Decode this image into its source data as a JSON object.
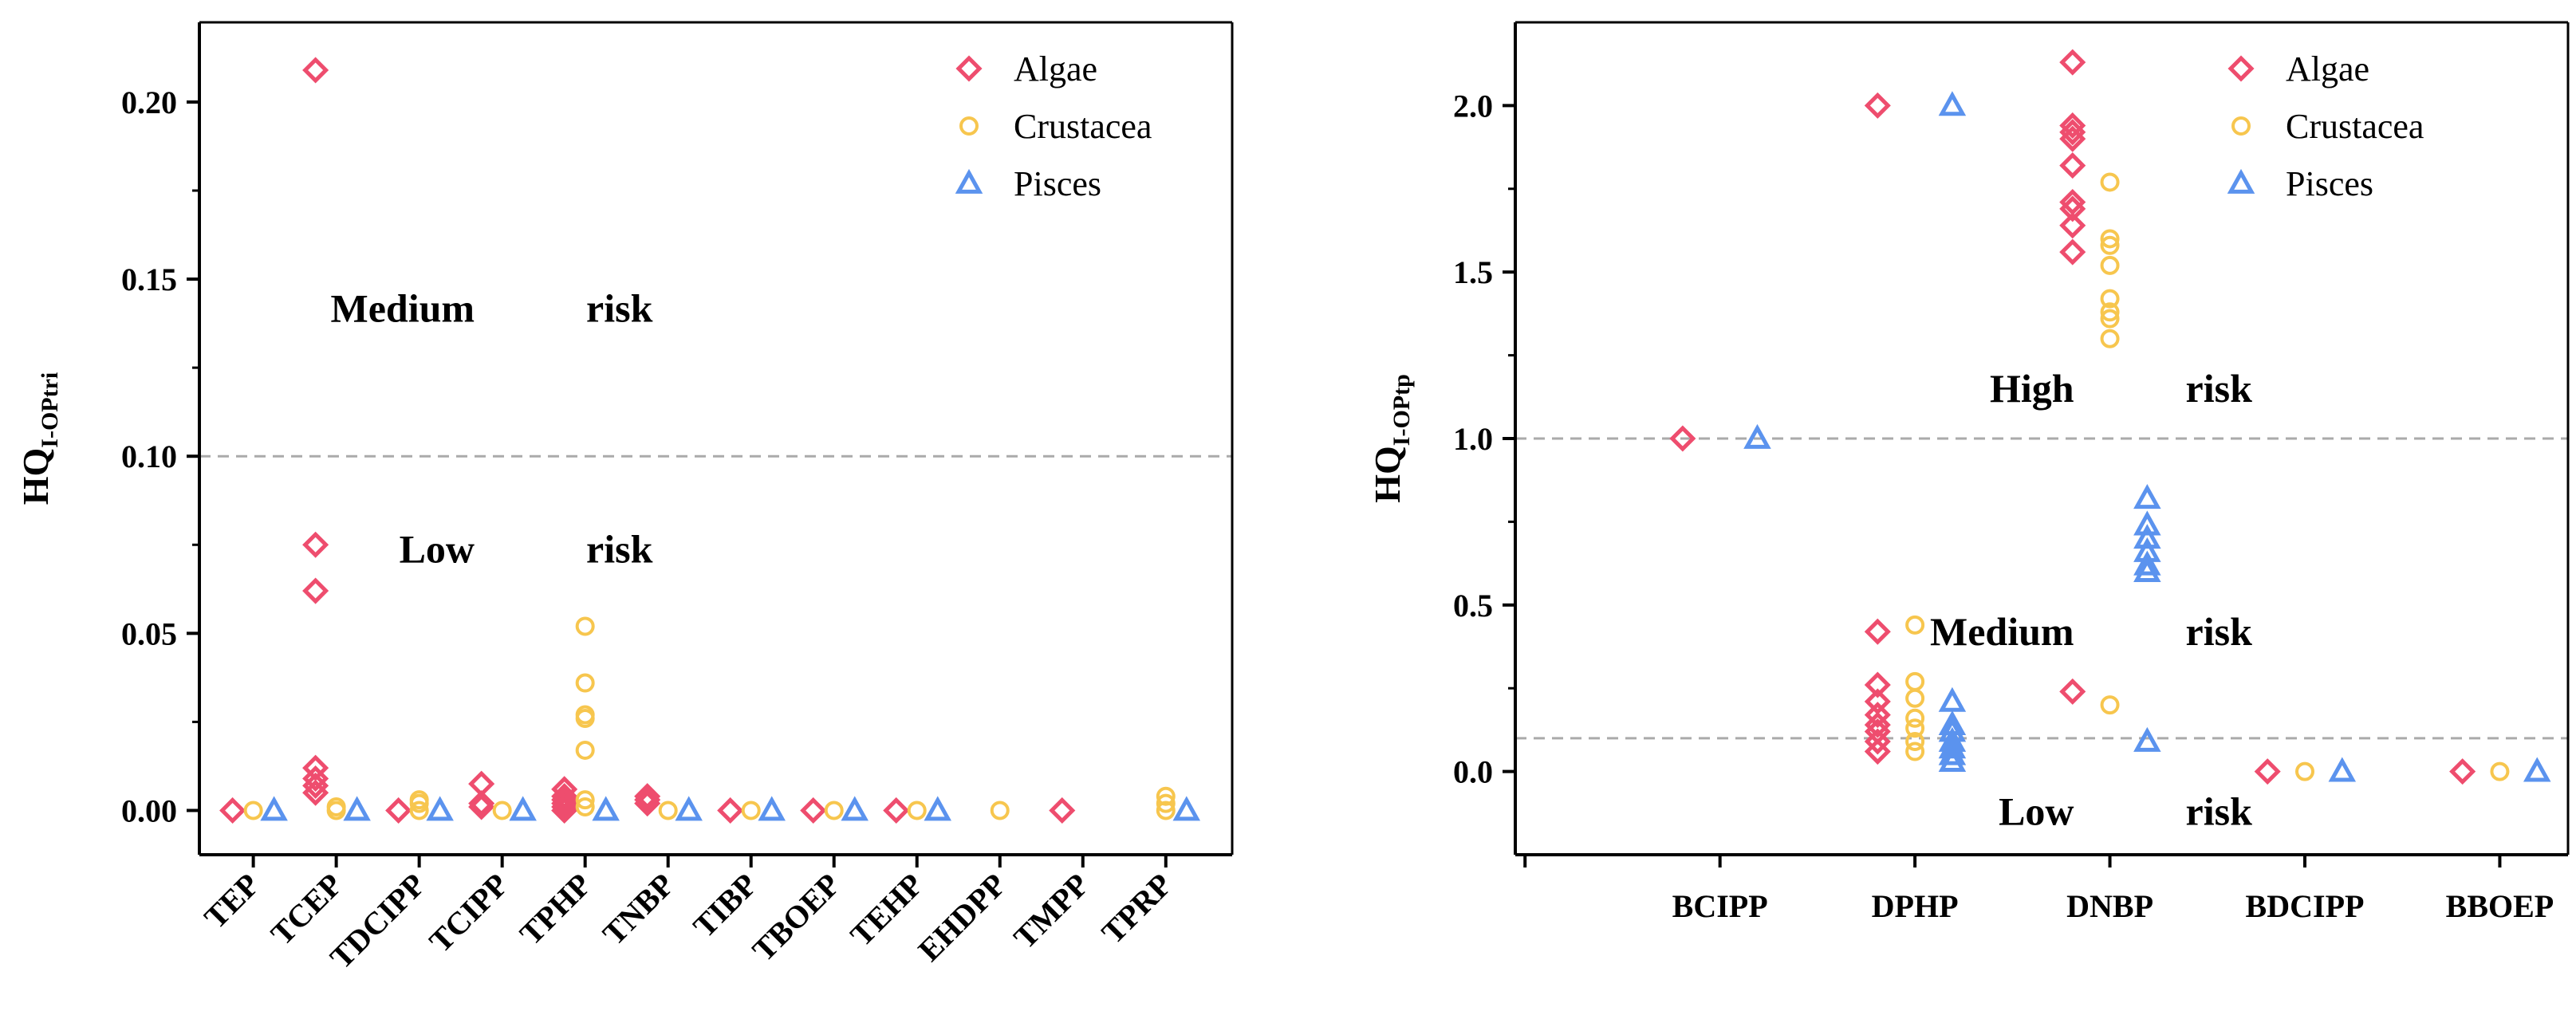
{
  "colors": {
    "Algae": "#ee4d6e",
    "Crustacea": "#f7c64e",
    "Pisces": "#5b93ee"
  },
  "chart_data": [
    {
      "type": "scatter",
      "title": "",
      "ylabel": "HQ",
      "ylabel_sub": "I-OPtri",
      "ylim": [
        -0.0125,
        0.2225
      ],
      "yticks": [
        0.0,
        0.05,
        0.1,
        0.15,
        0.2
      ],
      "ytick_labels": [
        "0.00",
        "0.05",
        "0.10",
        "0.15",
        "0.20"
      ],
      "categories": [
        "TEP",
        "TCEP",
        "TDCIPP",
        "TCIPP",
        "TPHP",
        "TNBP",
        "TIBP",
        "TBOEP",
        "TEHP",
        "EHDPP",
        "TMPP",
        "TPRP"
      ],
      "thresholds": [
        0.1
      ],
      "annotations": [
        {
          "text_a": "Medium",
          "text_b": "risk",
          "y": 0.138,
          "cat": 4.1
        },
        {
          "text_a": "Low",
          "text_b": "risk",
          "y": 0.07,
          "cat": 4.1
        }
      ],
      "legend": [
        "Algae",
        "Crustacea",
        "Pisces"
      ],
      "series": [
        {
          "name": "Algae",
          "points": [
            [
              1,
              0.0
            ],
            [
              2,
              0.209
            ],
            [
              2,
              0.075
            ],
            [
              2,
              0.062
            ],
            [
              2,
              0.012
            ],
            [
              2,
              0.009
            ],
            [
              2,
              0.007
            ],
            [
              2,
              0.005
            ],
            [
              3,
              0.0
            ],
            [
              4,
              0.0075
            ],
            [
              4,
              0.002
            ],
            [
              4,
              0.001
            ],
            [
              5,
              0.006
            ],
            [
              5,
              0.004
            ],
            [
              5,
              0.003
            ],
            [
              5,
              0.002
            ],
            [
              5,
              0.001
            ],
            [
              5,
              0.0
            ],
            [
              6,
              0.004
            ],
            [
              6,
              0.003
            ],
            [
              6,
              0.002
            ],
            [
              7,
              0.0
            ],
            [
              8,
              0.0
            ],
            [
              9,
              0.0
            ],
            [
              11,
              0.0
            ]
          ]
        },
        {
          "name": "Crustacea",
          "points": [
            [
              1,
              0.0
            ],
            [
              2,
              0.001
            ],
            [
              2,
              0.0
            ],
            [
              3,
              0.0
            ],
            [
              3,
              0.002
            ],
            [
              3,
              0.003
            ],
            [
              4,
              0.0
            ],
            [
              5,
              0.052
            ],
            [
              5,
              0.036
            ],
            [
              5,
              0.027
            ],
            [
              5,
              0.026
            ],
            [
              5,
              0.017
            ],
            [
              5,
              0.003
            ],
            [
              5,
              0.001
            ],
            [
              6,
              0.0
            ],
            [
              7,
              0.0
            ],
            [
              8,
              0.0
            ],
            [
              9,
              0.0
            ],
            [
              10,
              0.0
            ],
            [
              12,
              0.004
            ],
            [
              12,
              0.002
            ],
            [
              12,
              0.0
            ]
          ]
        },
        {
          "name": "Pisces",
          "points": [
            [
              1,
              0.0
            ],
            [
              2,
              0.0
            ],
            [
              3,
              0.0
            ],
            [
              4,
              0.0
            ],
            [
              5,
              0.0
            ],
            [
              6,
              0.0
            ],
            [
              7,
              0.0
            ],
            [
              8,
              0.0
            ],
            [
              9,
              0.0
            ],
            [
              12,
              0.0
            ]
          ]
        }
      ]
    },
    {
      "type": "scatter",
      "title": "",
      "ylabel": "HQ",
      "ylabel_sub": "I-OPtp",
      "ylim": [
        -0.25,
        2.25
      ],
      "yticks": [
        0.0,
        0.5,
        1.0,
        1.5,
        2.0
      ],
      "ytick_labels": [
        "0.0",
        "0.5",
        "1.0",
        "1.5",
        "2.0"
      ],
      "categories": [
        "BCIPP",
        "DPHP",
        "DNBP",
        "BDCIPP",
        "BBOEP"
      ],
      "thresholds": [
        1.0,
        0.1
      ],
      "annotations": [
        {
          "text_a": "High",
          "text_b": "risk",
          "y": 1.11,
          "cat": 3.0
        },
        {
          "text_a": "Medium",
          "text_b": "risk",
          "y": 0.38,
          "cat": 3.0
        },
        {
          "text_a": "Low",
          "text_b": "risk",
          "y": -0.16,
          "cat": 3.0
        }
      ],
      "legend": [
        "Algae",
        "Crustacea",
        "Pisces"
      ],
      "series": [
        {
          "name": "Algae",
          "points": [
            [
              1,
              1.0
            ],
            [
              2,
              2.0
            ],
            [
              2,
              0.42
            ],
            [
              2,
              0.26
            ],
            [
              2,
              0.21
            ],
            [
              2,
              0.17
            ],
            [
              2,
              0.14
            ],
            [
              2,
              0.12
            ],
            [
              2,
              0.09
            ],
            [
              2,
              0.06
            ],
            [
              3,
              2.13
            ],
            [
              3,
              1.94
            ],
            [
              3,
              1.92
            ],
            [
              3,
              1.9
            ],
            [
              3,
              1.82
            ],
            [
              3,
              1.71
            ],
            [
              3,
              1.69
            ],
            [
              3,
              1.64
            ],
            [
              3,
              1.56
            ],
            [
              3,
              0.24
            ],
            [
              4,
              0.0
            ],
            [
              5,
              0.0
            ]
          ]
        },
        {
          "name": "Crustacea",
          "points": [
            [
              2,
              0.44
            ],
            [
              2,
              0.27
            ],
            [
              2,
              0.22
            ],
            [
              2,
              0.16
            ],
            [
              2,
              0.13
            ],
            [
              2,
              0.09
            ],
            [
              2,
              0.06
            ],
            [
              3,
              1.77
            ],
            [
              3,
              1.6
            ],
            [
              3,
              1.58
            ],
            [
              3,
              1.52
            ],
            [
              3,
              1.42
            ],
            [
              3,
              1.38
            ],
            [
              3,
              1.36
            ],
            [
              3,
              1.3
            ],
            [
              3,
              0.2
            ],
            [
              4,
              0.0
            ],
            [
              5,
              0.0
            ]
          ]
        },
        {
          "name": "Pisces",
          "points": [
            [
              1,
              1.0
            ],
            [
              2,
              2.0
            ],
            [
              2,
              0.21
            ],
            [
              2,
              0.14
            ],
            [
              2,
              0.12
            ],
            [
              2,
              0.09
            ],
            [
              2,
              0.07
            ],
            [
              2,
              0.05
            ],
            [
              2,
              0.03
            ],
            [
              3,
              0.82
            ],
            [
              3,
              0.74
            ],
            [
              3,
              0.7
            ],
            [
              3,
              0.66
            ],
            [
              3,
              0.62
            ],
            [
              3,
              0.6
            ],
            [
              3,
              0.09
            ],
            [
              4,
              0.0
            ],
            [
              5,
              0.0
            ]
          ]
        }
      ]
    }
  ]
}
